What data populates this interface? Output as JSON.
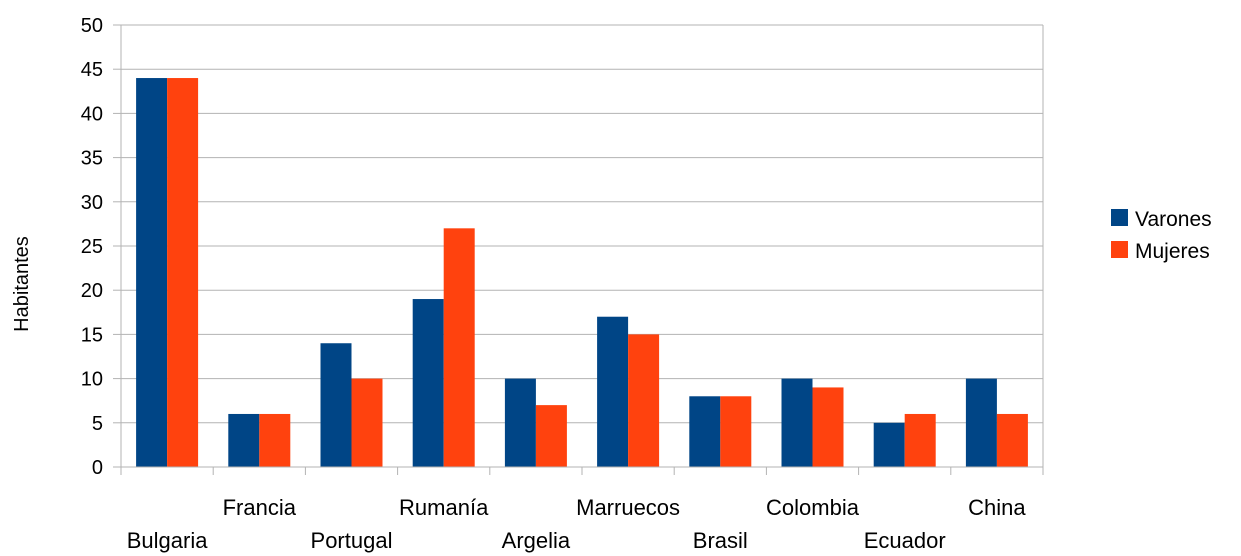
{
  "chart_data": {
    "type": "bar",
    "title": "",
    "xlabel": "",
    "ylabel": "Habitantes",
    "ylim": [
      0,
      50
    ],
    "yticks": [
      0,
      5,
      10,
      15,
      20,
      25,
      30,
      35,
      40,
      45,
      50
    ],
    "grid": true,
    "legend_position": "right",
    "categories": [
      "Bulgaria",
      "Francia",
      "Portugal",
      "Rumanía",
      "Argelia",
      "Marruecos",
      "Brasil",
      "Colombia",
      "Ecuador",
      "China"
    ],
    "series": [
      {
        "name": "Varones",
        "color": "#004586",
        "values": [
          44,
          6,
          14,
          19,
          10,
          17,
          8,
          10,
          5,
          10
        ]
      },
      {
        "name": "Mujeres",
        "color": "#ff420e",
        "values": [
          44,
          6,
          10,
          27,
          7,
          15,
          8,
          9,
          6,
          6
        ]
      }
    ]
  }
}
